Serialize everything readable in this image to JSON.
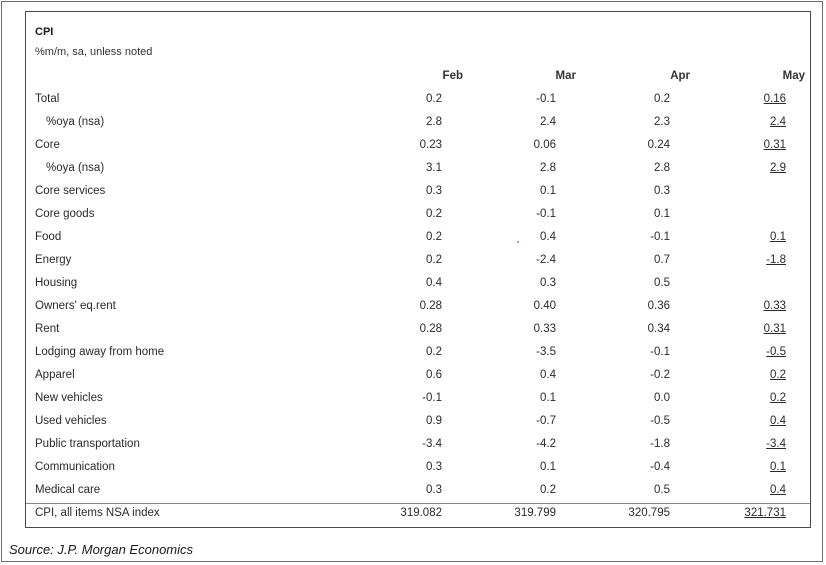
{
  "title": "CPI",
  "subtitle": "%m/m, sa, unless noted",
  "columns": [
    "Feb",
    "Mar",
    "Apr",
    "May"
  ],
  "rows": [
    {
      "label": "Total",
      "indent": false,
      "values": [
        "0.2",
        "-0.1",
        "0.2",
        "0.16"
      ]
    },
    {
      "label": "%oya (nsa)",
      "indent": true,
      "values": [
        "2.8",
        "2.4",
        "2.3",
        "2.4"
      ]
    },
    {
      "label": "Core",
      "indent": false,
      "values": [
        "0.23",
        "0.06",
        "0.24",
        "0.31"
      ]
    },
    {
      "label": "%oya (nsa)",
      "indent": true,
      "values": [
        "3.1",
        "2.8",
        "2.8",
        "2.9"
      ]
    },
    {
      "label": "Core services",
      "indent": false,
      "values": [
        "0.3",
        "0.1",
        "0.3",
        ""
      ]
    },
    {
      "label": "Core goods",
      "indent": false,
      "values": [
        "0.2",
        "-0.1",
        "0.1",
        ""
      ]
    },
    {
      "label": "Food",
      "indent": false,
      "values": [
        "0.2",
        "0.4",
        "-0.1",
        "0.1"
      ]
    },
    {
      "label": "Energy",
      "indent": false,
      "values": [
        "0.2",
        "-2.4",
        "0.7",
        "-1.8"
      ]
    },
    {
      "label": "Housing",
      "indent": false,
      "values": [
        "0.4",
        "0.3",
        "0.5",
        ""
      ]
    },
    {
      "label": "Owners' eq.rent",
      "indent": false,
      "values": [
        "0.28",
        "0.40",
        "0.36",
        "0.33"
      ]
    },
    {
      "label": "Rent",
      "indent": false,
      "values": [
        "0.28",
        "0.33",
        "0.34",
        "0.31"
      ]
    },
    {
      "label": "Lodging away from home",
      "indent": false,
      "values": [
        "0.2",
        "-3.5",
        "-0.1",
        "-0.5"
      ]
    },
    {
      "label": "Apparel",
      "indent": false,
      "values": [
        "0.6",
        "0.4",
        "-0.2",
        "0.2"
      ]
    },
    {
      "label": "New vehicles",
      "indent": false,
      "values": [
        "-0.1",
        "0.1",
        "0.0",
        "0.2"
      ]
    },
    {
      "label": "Used vehicles",
      "indent": false,
      "values": [
        "0.9",
        "-0.7",
        "-0.5",
        "0.4"
      ]
    },
    {
      "label": "Public transportation",
      "indent": false,
      "values": [
        "-3.4",
        "-4.2",
        "-1.8",
        "-3.4"
      ]
    },
    {
      "label": "Communication",
      "indent": false,
      "values": [
        "0.3",
        "0.1",
        "-0.4",
        "0.1"
      ]
    },
    {
      "label": "Medical care",
      "indent": false,
      "values": [
        "0.3",
        "0.2",
        "0.5",
        "0.4"
      ]
    },
    {
      "label": "CPI, all items NSA index",
      "indent": false,
      "values": [
        "319.082",
        "319.799",
        "320.795",
        "321.731"
      ]
    }
  ],
  "source": "Source: J.P. Morgan Economics"
}
